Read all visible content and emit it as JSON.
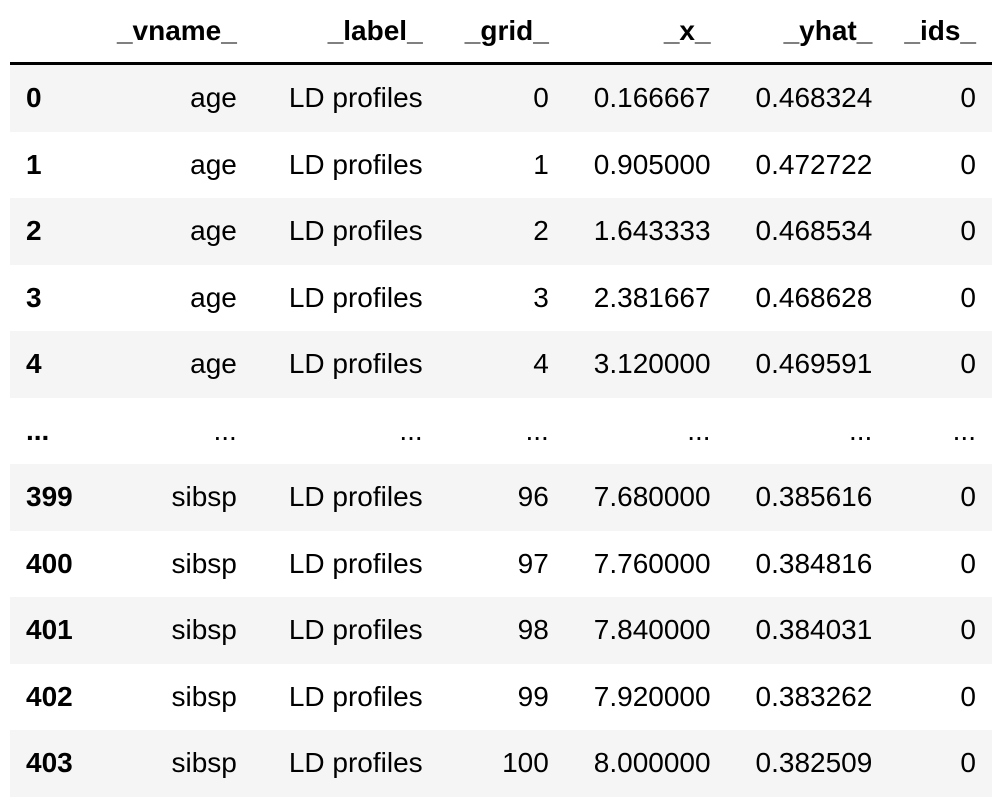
{
  "table": {
    "columns": [
      "_vname_",
      "_label_",
      "_grid_",
      "_x_",
      "_yhat_",
      "_ids_"
    ],
    "rows": [
      {
        "index": "0",
        "vname": "age",
        "label": "LD profiles",
        "grid": "0",
        "x": "0.166667",
        "yhat": "0.468324",
        "ids": "0"
      },
      {
        "index": "1",
        "vname": "age",
        "label": "LD profiles",
        "grid": "1",
        "x": "0.905000",
        "yhat": "0.472722",
        "ids": "0"
      },
      {
        "index": "2",
        "vname": "age",
        "label": "LD profiles",
        "grid": "2",
        "x": "1.643333",
        "yhat": "0.468534",
        "ids": "0"
      },
      {
        "index": "3",
        "vname": "age",
        "label": "LD profiles",
        "grid": "3",
        "x": "2.381667",
        "yhat": "0.468628",
        "ids": "0"
      },
      {
        "index": "4",
        "vname": "age",
        "label": "LD profiles",
        "grid": "4",
        "x": "3.120000",
        "yhat": "0.469591",
        "ids": "0"
      },
      {
        "index": "...",
        "vname": "...",
        "label": "...",
        "grid": "...",
        "x": "...",
        "yhat": "...",
        "ids": "..."
      },
      {
        "index": "399",
        "vname": "sibsp",
        "label": "LD profiles",
        "grid": "96",
        "x": "7.680000",
        "yhat": "0.385616",
        "ids": "0"
      },
      {
        "index": "400",
        "vname": "sibsp",
        "label": "LD profiles",
        "grid": "97",
        "x": "7.760000",
        "yhat": "0.384816",
        "ids": "0"
      },
      {
        "index": "401",
        "vname": "sibsp",
        "label": "LD profiles",
        "grid": "98",
        "x": "7.840000",
        "yhat": "0.384031",
        "ids": "0"
      },
      {
        "index": "402",
        "vname": "sibsp",
        "label": "LD profiles",
        "grid": "99",
        "x": "7.920000",
        "yhat": "0.383262",
        "ids": "0"
      },
      {
        "index": "403",
        "vname": "sibsp",
        "label": "LD profiles",
        "grid": "100",
        "x": "8.000000",
        "yhat": "0.382509",
        "ids": "0"
      }
    ]
  }
}
